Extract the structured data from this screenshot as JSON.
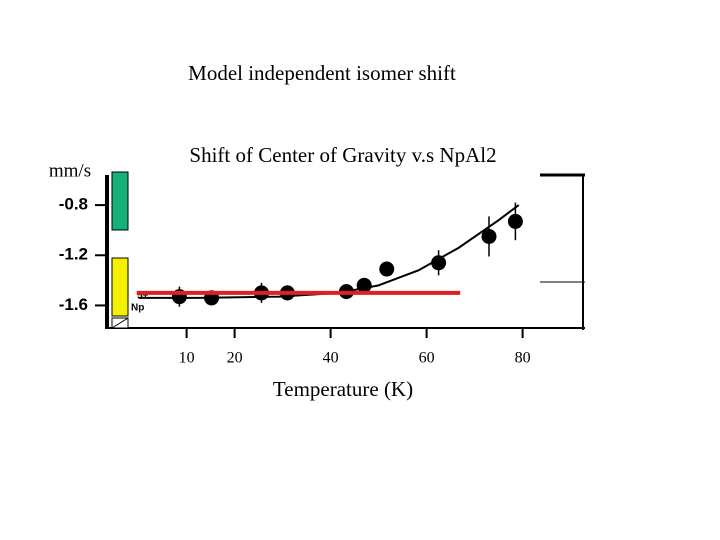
{
  "chart_data": {
    "type": "scatter",
    "title": "Model independent isomer shift",
    "subtitle": "Shift of Center of Gravity v.s NpAl2",
    "y_label": "mm/s",
    "x_label": "Temperature  (K)",
    "annotations": [
      "Np",
      "5+"
    ],
    "xlim": [
      -7,
      93
    ],
    "xticks": [
      10,
      20,
      40,
      60,
      80
    ],
    "ylim": [
      -1.78,
      -0.56
    ],
    "yticks": [
      -0.8,
      -1.2,
      -1.6
    ],
    "series": [
      {
        "color": "#000000",
        "x": [
          8.5,
          15.2,
          25.6,
          31,
          43.3,
          47,
          51.7,
          62.5,
          73,
          78.5
        ],
        "values": [
          -1.53,
          -1.54,
          -1.5,
          -1.5,
          -1.49,
          -1.44,
          -1.31,
          -1.26,
          -1.05,
          -0.93
        ],
        "errors": [
          0.08,
          0.06,
          0.08,
          0.06,
          0.06,
          0.06,
          0.06,
          0.1,
          0.16,
          0.15
        ]
      }
    ],
    "fit_curve": {
      "color": "#000000",
      "x": [
        0,
        12.5,
        29.2,
        41.7,
        50,
        58.3,
        66.7,
        75,
        79.2
      ],
      "values": [
        -1.54,
        -1.54,
        -1.53,
        -1.5,
        -1.44,
        -1.32,
        -1.14,
        -0.92,
        -0.8
      ]
    },
    "reference_line": {
      "color": "#e0201b",
      "x": [
        -0.4,
        67
      ],
      "values": [
        -1.5,
        -1.5
      ]
    }
  }
}
